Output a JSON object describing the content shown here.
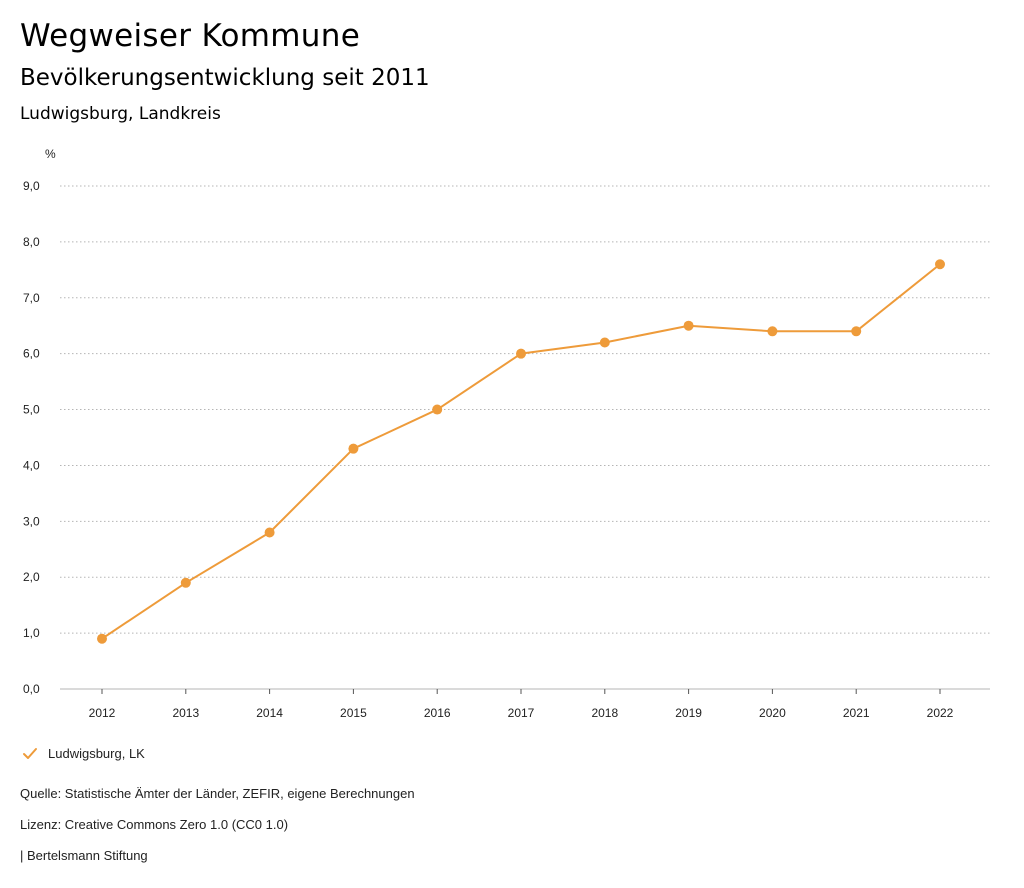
{
  "header": {
    "title": "Wegweiser Kommune",
    "subtitle": "Bevölkerungsentwicklung seit 2011",
    "region": "Ludwigsburg, Landkreis"
  },
  "colors": {
    "series": "#ee9b3a",
    "grid": "#b5b5b5",
    "axis": "#555555"
  },
  "chart_data": {
    "type": "line",
    "title": "Bevölkerungsentwicklung seit 2011",
    "ylabel": "%",
    "xlabel": "",
    "categories": [
      "2012",
      "2013",
      "2014",
      "2015",
      "2016",
      "2017",
      "2018",
      "2019",
      "2020",
      "2021",
      "2022"
    ],
    "series": [
      {
        "name": "Ludwigsburg, LK",
        "values": [
          0.9,
          1.9,
          2.8,
          4.3,
          5.0,
          6.0,
          6.2,
          6.5,
          6.4,
          6.4,
          7.6
        ]
      }
    ],
    "yticks": [
      "0,0",
      "1,0",
      "2,0",
      "3,0",
      "4,0",
      "5,0",
      "6,0",
      "7,0",
      "8,0",
      "9,0"
    ],
    "ylim": [
      0,
      9
    ],
    "grid": true,
    "legend": "bottom-left"
  },
  "legend": {
    "label": "Ludwigsburg, LK",
    "icon": "checkmark-icon"
  },
  "footer": {
    "source": "Quelle: Statistische Ämter der Länder, ZEFIR, eigene Berechnungen",
    "license": "Lizenz: Creative Commons Zero 1.0 (CC0 1.0)",
    "credit": "| Bertelsmann Stiftung"
  }
}
